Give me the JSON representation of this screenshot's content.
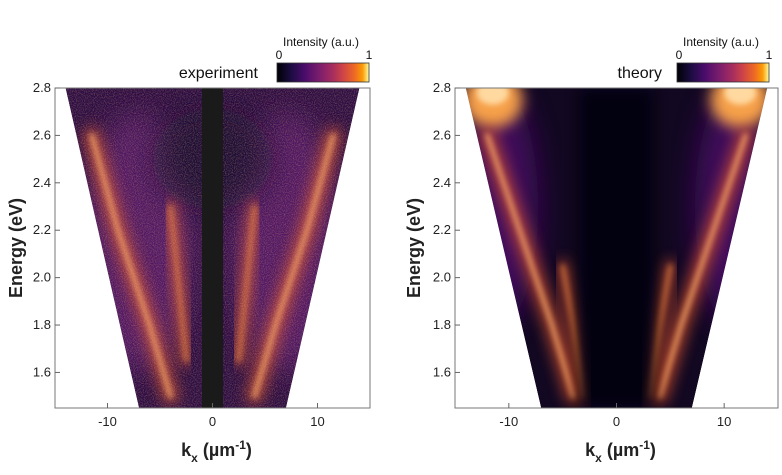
{
  "chart_data": [
    {
      "type": "heatmap",
      "title": "experiment",
      "xlabel": "k",
      "xlabel_sub": "x",
      "xlabel_unit": "(µm",
      "xlabel_unit_sup": "-1",
      "xlabel_unit_close": ")",
      "ylabel": "Energy (eV)",
      "xlim": [
        -15,
        15
      ],
      "ylim": [
        1.45,
        2.8
      ],
      "x_ticks": [
        -10,
        0,
        10
      ],
      "y_ticks": [
        1.6,
        1.8,
        2.0,
        2.2,
        2.4,
        2.6,
        2.8
      ],
      "masked_x_range": [
        -1,
        1
      ],
      "visible_k_edge": [
        {
          "E": 1.45,
          "k": 7
        },
        {
          "E": 2.8,
          "k": 14
        }
      ],
      "bands": [
        {
          "name": "outer",
          "points": [
            {
              "k": 4,
              "E": 1.5
            },
            {
              "k": 6,
              "E": 1.8
            },
            {
              "k": 9,
              "E": 2.2
            },
            {
              "k": 11.5,
              "E": 2.6
            }
          ]
        },
        {
          "name": "inner",
          "points": [
            {
              "k": 2.5,
              "E": 1.65
            },
            {
              "k": 3.3,
              "E": 2.0
            },
            {
              "k": 4,
              "E": 2.3
            }
          ]
        }
      ],
      "colorbar": {
        "label": "Intensity (a.u.)",
        "min_label": "0",
        "max_label": "1",
        "colormap": "inferno"
      }
    },
    {
      "type": "heatmap",
      "title": "theory",
      "xlabel": "k",
      "xlabel_sub": "x",
      "xlabel_unit": "(µm",
      "xlabel_unit_sup": "-1",
      "xlabel_unit_close": ")",
      "ylabel": "Energy (eV)",
      "xlim": [
        -15,
        15
      ],
      "ylim": [
        1.45,
        2.8
      ],
      "x_ticks": [
        -10,
        0,
        10
      ],
      "y_ticks": [
        1.6,
        1.8,
        2.0,
        2.2,
        2.4,
        2.6,
        2.8
      ],
      "visible_k_edge": [
        {
          "E": 1.45,
          "k": 7
        },
        {
          "E": 2.8,
          "k": 14
        }
      ],
      "bands": [
        {
          "name": "outer",
          "points": [
            {
              "k": 4,
              "E": 1.5
            },
            {
              "k": 6,
              "E": 1.8
            },
            {
              "k": 9,
              "E": 2.2
            },
            {
              "k": 12,
              "E": 2.6
            }
          ]
        },
        {
          "name": "inner",
          "points": [
            {
              "k": 3,
              "E": 1.5
            },
            {
              "k": 4,
              "E": 1.8
            },
            {
              "k": 5,
              "E": 2.05
            }
          ]
        }
      ],
      "colorbar": {
        "label": "Intensity (a.u.)",
        "min_label": "0",
        "max_label": "1",
        "colormap": "inferno"
      }
    }
  ]
}
